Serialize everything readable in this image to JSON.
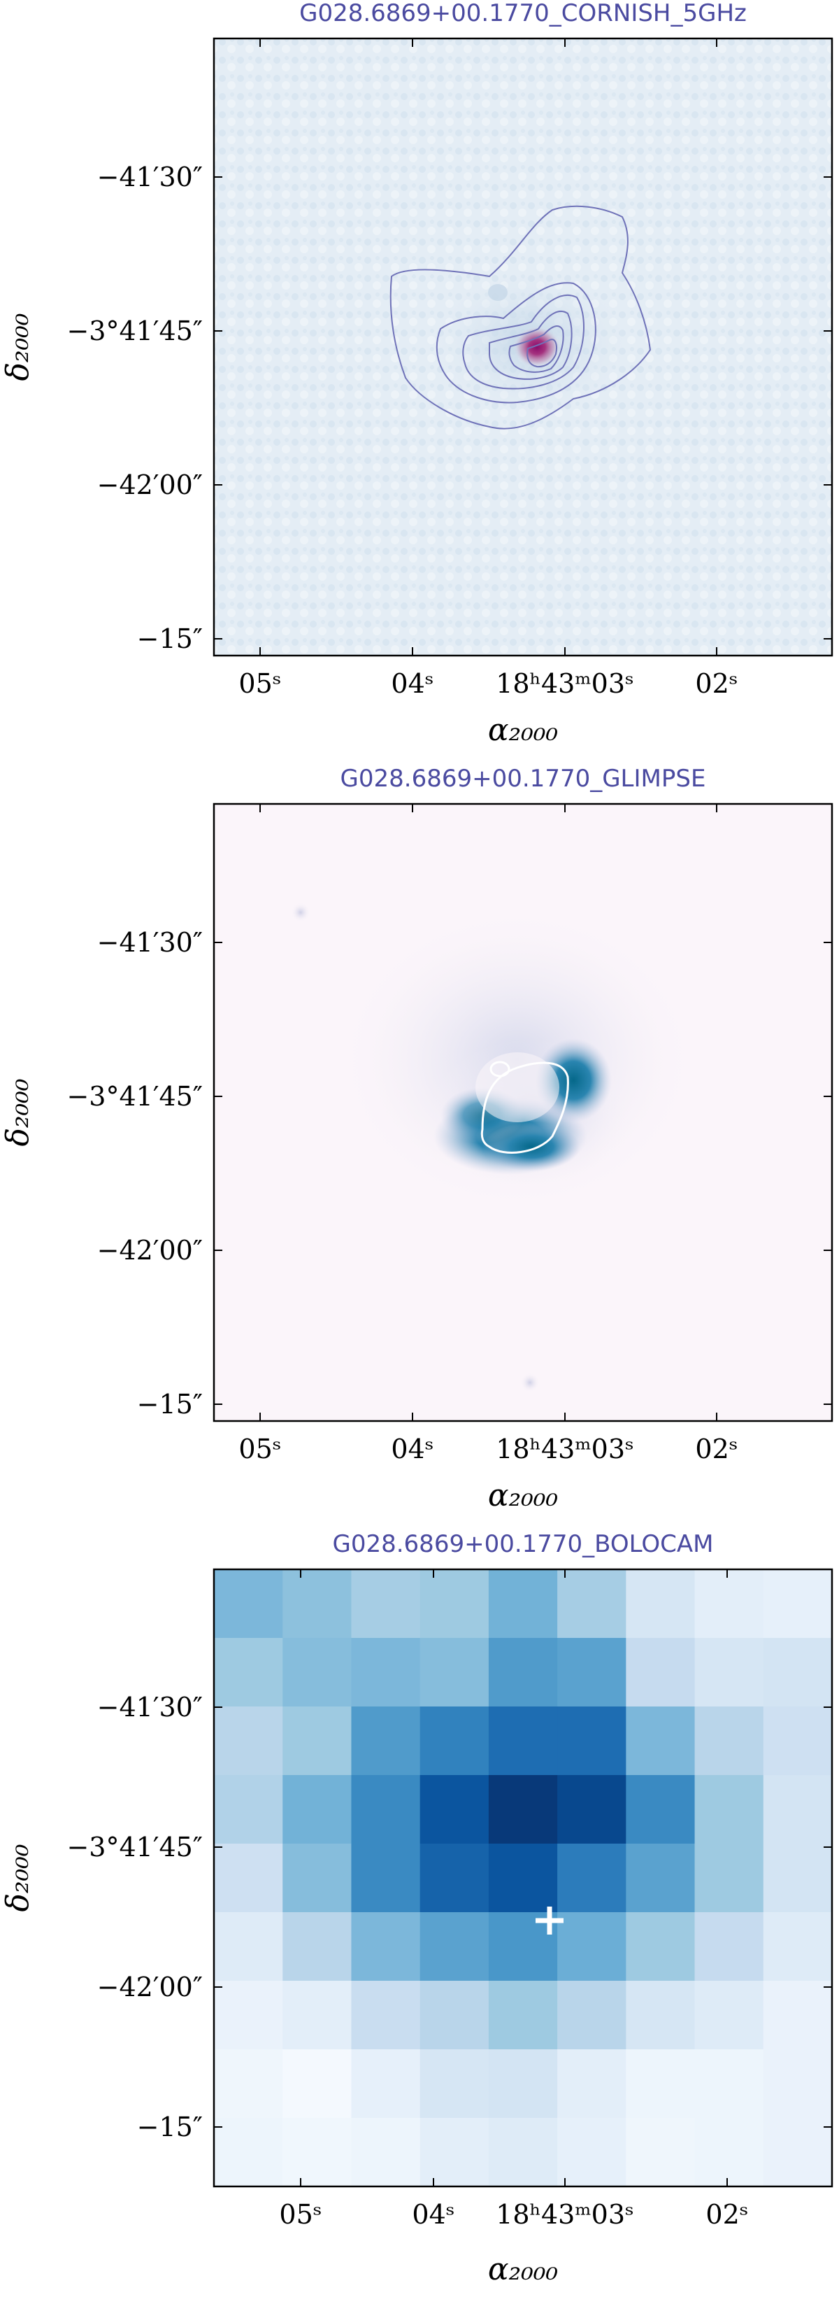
{
  "panels": [
    {
      "title": "G028.6869+00.1770_CORNISH_5GHz",
      "x_ticks": [
        "05ˢ",
        "04ˢ",
        "18ʰ43ᵐ03ˢ",
        "02ˢ"
      ],
      "y_ticks": [
        "−41′30″",
        "−3°41′45″",
        "−42′00″",
        "−15″"
      ],
      "xlabel": "α₂₀₀₀",
      "ylabel": "δ₂₀₀₀",
      "colormap": "light blue background with purple-magenta compact source",
      "overlay": "blue-purple contours"
    },
    {
      "title": "G028.6869+00.1770_GLIMPSE",
      "x_ticks": [
        "05ˢ",
        "04ˢ",
        "18ʰ43ᵐ03ˢ",
        "02ˢ"
      ],
      "y_ticks": [
        "−41′30″",
        "−3°41′45″",
        "−42′00″",
        "−15″"
      ],
      "xlabel": "α₂₀₀₀",
      "ylabel": "δ₂₀₀₀",
      "colormap": "near-white pink background with teal-blue arc",
      "overlay": "white contour"
    },
    {
      "title": "G028.6869+00.1770_BOLOCAM",
      "x_ticks": [
        "05ˢ",
        "04ˢ",
        "18ʰ43ᵐ03ˢ",
        "02ˢ"
      ],
      "y_ticks": [
        "−41′30″",
        "−3°41′45″",
        "−42′00″",
        "−15″"
      ],
      "xlabel": "α₂₀₀₀",
      "ylabel": "δ₂₀₀₀",
      "colormap": "Blues",
      "overlay": "white cross marker",
      "pixel_levels": [
        [
          0.55,
          0.5,
          0.42,
          0.45,
          0.58,
          0.42,
          0.2,
          0.12,
          0.1
        ],
        [
          0.45,
          0.52,
          0.55,
          0.52,
          0.68,
          0.65,
          0.3,
          0.2,
          0.22
        ],
        [
          0.35,
          0.45,
          0.68,
          0.78,
          0.85,
          0.85,
          0.55,
          0.35,
          0.25
        ],
        [
          0.38,
          0.58,
          0.75,
          0.92,
          0.98,
          0.95,
          0.75,
          0.45,
          0.22
        ],
        [
          0.25,
          0.52,
          0.75,
          0.88,
          0.92,
          0.8,
          0.65,
          0.45,
          0.22
        ],
        [
          0.15,
          0.35,
          0.55,
          0.65,
          0.7,
          0.6,
          0.45,
          0.3,
          0.15
        ],
        [
          0.08,
          0.12,
          0.28,
          0.35,
          0.45,
          0.35,
          0.2,
          0.15,
          0.08
        ],
        [
          0.05,
          0.02,
          0.1,
          0.2,
          0.22,
          0.12,
          0.06,
          0.06,
          0.08
        ],
        [
          0.06,
          0.04,
          0.06,
          0.12,
          0.15,
          0.1,
          0.05,
          0.06,
          0.08
        ]
      ]
    }
  ]
}
